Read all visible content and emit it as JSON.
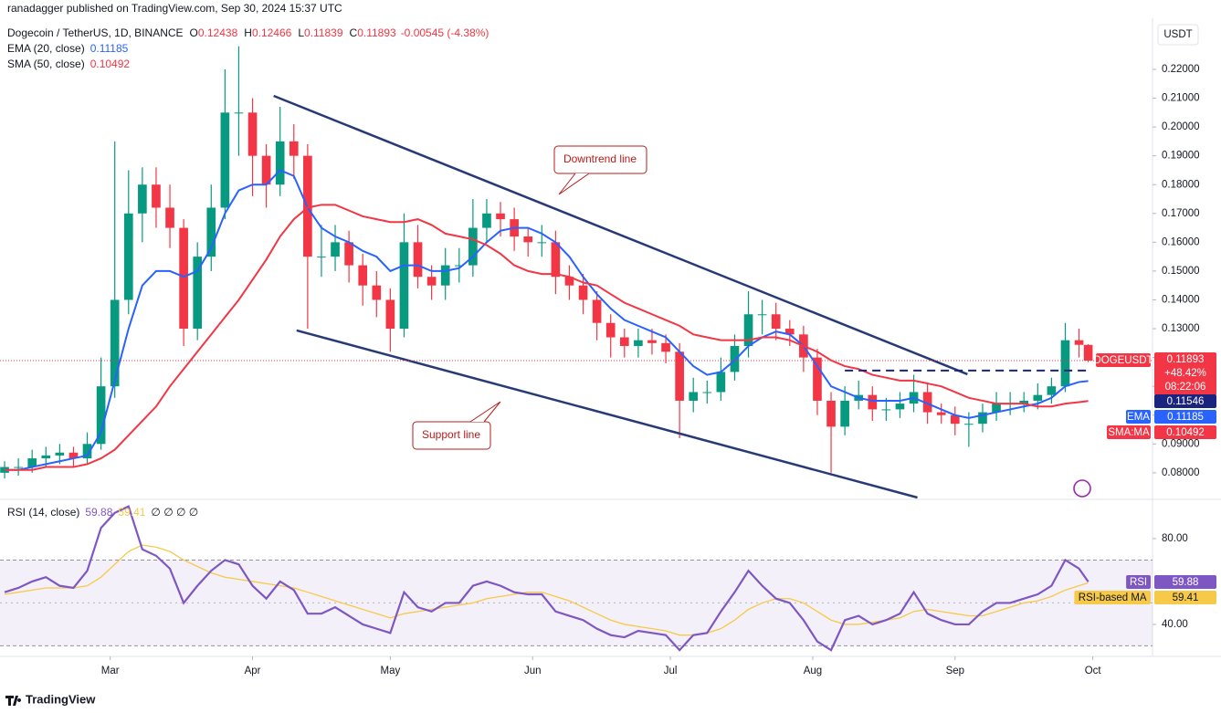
{
  "header": {
    "published": "ranadagger published on TradingView.com, Sep 30, 2024 15:37 UTC",
    "instrument": "Dogecoin / TetherUS, 1D, BINANCE",
    "ohlc_labels": [
      "O",
      "H",
      "L",
      "C"
    ],
    "change": "-0.00545 (-4.38%)",
    "currency": "USDT",
    "symbol_tag": "DOGEUSDT",
    "change_tag": "+48.42%",
    "countdown": "08:22:06"
  },
  "footer": {
    "brand": "TradingView"
  },
  "chart_data": [
    {
      "type": "candlestick",
      "colors": {
        "up": "#089981",
        "down": "#f23645"
      },
      "x": [
        0,
        3,
        6,
        9,
        12,
        15,
        18,
        21,
        24,
        27,
        30,
        33,
        36,
        39,
        42,
        45,
        48,
        51,
        54,
        57,
        60,
        63,
        66,
        69,
        72,
        75,
        78,
        81,
        84,
        87,
        90,
        93,
        96,
        99,
        102,
        105,
        108,
        111,
        114,
        117,
        120,
        123,
        126,
        129,
        132,
        135,
        138,
        141,
        144,
        147,
        150,
        153,
        156,
        159,
        162,
        165,
        168,
        171,
        174,
        177,
        180,
        183,
        186,
        189,
        192,
        195,
        198,
        201,
        204,
        207,
        210,
        213,
        216,
        219,
        222,
        225,
        228,
        231,
        234,
        236
      ],
      "xlim": [
        -1,
        250
      ],
      "xticks": [
        {
          "value": 23,
          "label": "Mar"
        },
        {
          "value": 54,
          "label": "Apr"
        },
        {
          "value": 84,
          "label": "May"
        },
        {
          "value": 115,
          "label": "Jun"
        },
        {
          "value": 145,
          "label": "Jul"
        },
        {
          "value": 176,
          "label": "Aug"
        },
        {
          "value": 207,
          "label": "Sep"
        },
        {
          "value": 237,
          "label": "Oct"
        }
      ],
      "ylim": [
        0.0714,
        0.2371
      ],
      "yticks": [
        {
          "value": 0.08,
          "label": "0.08000"
        },
        {
          "value": 0.09,
          "label": "0.09000"
        },
        {
          "value": 0.1,
          "label": "0.10000"
        },
        {
          "value": 0.11,
          "label": "0.11000"
        },
        {
          "value": 0.12,
          "label": "0.12000"
        },
        {
          "value": 0.13,
          "label": "0.13000"
        },
        {
          "value": 0.14,
          "label": "0.14000"
        },
        {
          "value": 0.15,
          "label": "0.15000"
        },
        {
          "value": 0.16,
          "label": "0.16000"
        },
        {
          "value": 0.17,
          "label": "0.17000"
        },
        {
          "value": 0.18,
          "label": "0.18000"
        },
        {
          "value": 0.19,
          "label": "0.19000"
        },
        {
          "value": 0.2,
          "label": "0.20000"
        },
        {
          "value": 0.21,
          "label": "0.21000"
        },
        {
          "value": 0.22,
          "label": "0.22000"
        }
      ],
      "candles": [
        [
          0.08,
          0.084,
          0.078,
          0.082
        ],
        [
          0.082,
          0.085,
          0.079,
          0.082
        ],
        [
          0.082,
          0.088,
          0.08,
          0.085
        ],
        [
          0.085,
          0.089,
          0.082,
          0.086
        ],
        [
          0.086,
          0.09,
          0.083,
          0.087
        ],
        [
          0.087,
          0.089,
          0.082,
          0.085
        ],
        [
          0.085,
          0.094,
          0.083,
          0.09
        ],
        [
          0.09,
          0.12,
          0.088,
          0.11
        ],
        [
          0.11,
          0.195,
          0.106,
          0.14
        ],
        [
          0.14,
          0.185,
          0.135,
          0.17
        ],
        [
          0.17,
          0.186,
          0.16,
          0.18
        ],
        [
          0.18,
          0.186,
          0.165,
          0.172
        ],
        [
          0.172,
          0.18,
          0.158,
          0.165
        ],
        [
          0.165,
          0.168,
          0.124,
          0.13
        ],
        [
          0.13,
          0.16,
          0.126,
          0.155
        ],
        [
          0.155,
          0.18,
          0.15,
          0.172
        ],
        [
          0.172,
          0.22,
          0.168,
          0.205
        ],
        [
          0.205,
          0.228,
          0.19,
          0.205
        ],
        [
          0.205,
          0.21,
          0.176,
          0.19
        ],
        [
          0.19,
          0.194,
          0.172,
          0.18
        ],
        [
          0.18,
          0.207,
          0.176,
          0.195
        ],
        [
          0.195,
          0.201,
          0.182,
          0.19
        ],
        [
          0.19,
          0.194,
          0.13,
          0.155
        ],
        [
          0.155,
          0.166,
          0.148,
          0.155
        ],
        [
          0.155,
          0.166,
          0.15,
          0.16
        ],
        [
          0.16,
          0.164,
          0.146,
          0.152
        ],
        [
          0.152,
          0.156,
          0.138,
          0.145
        ],
        [
          0.145,
          0.15,
          0.134,
          0.14
        ],
        [
          0.14,
          0.144,
          0.122,
          0.13
        ],
        [
          0.13,
          0.17,
          0.127,
          0.16
        ],
        [
          0.16,
          0.166,
          0.144,
          0.148
        ],
        [
          0.148,
          0.152,
          0.14,
          0.145
        ],
        [
          0.145,
          0.158,
          0.14,
          0.152
        ],
        [
          0.152,
          0.158,
          0.146,
          0.152
        ],
        [
          0.152,
          0.175,
          0.148,
          0.165
        ],
        [
          0.165,
          0.175,
          0.16,
          0.17
        ],
        [
          0.17,
          0.174,
          0.162,
          0.168
        ],
        [
          0.168,
          0.172,
          0.157,
          0.162
        ],
        [
          0.162,
          0.165,
          0.155,
          0.16
        ],
        [
          0.16,
          0.166,
          0.155,
          0.16
        ],
        [
          0.16,
          0.164,
          0.142,
          0.148
        ],
        [
          0.148,
          0.152,
          0.14,
          0.145
        ],
        [
          0.145,
          0.149,
          0.135,
          0.14
        ],
        [
          0.14,
          0.143,
          0.126,
          0.132
        ],
        [
          0.132,
          0.135,
          0.12,
          0.127
        ],
        [
          0.127,
          0.13,
          0.12,
          0.124
        ],
        [
          0.124,
          0.13,
          0.12,
          0.126
        ],
        [
          0.126,
          0.13,
          0.121,
          0.125
        ],
        [
          0.125,
          0.128,
          0.118,
          0.122
        ],
        [
          0.122,
          0.125,
          0.092,
          0.105
        ],
        [
          0.105,
          0.113,
          0.101,
          0.108
        ],
        [
          0.108,
          0.112,
          0.104,
          0.108
        ],
        [
          0.108,
          0.12,
          0.105,
          0.115
        ],
        [
          0.115,
          0.128,
          0.112,
          0.124
        ],
        [
          0.124,
          0.143,
          0.12,
          0.135
        ],
        [
          0.135,
          0.14,
          0.128,
          0.135
        ],
        [
          0.135,
          0.139,
          0.126,
          0.13
        ],
        [
          0.13,
          0.133,
          0.124,
          0.128
        ],
        [
          0.128,
          0.131,
          0.115,
          0.12
        ],
        [
          0.12,
          0.123,
          0.1,
          0.105
        ],
        [
          0.105,
          0.108,
          0.08,
          0.096
        ],
        [
          0.096,
          0.11,
          0.093,
          0.105
        ],
        [
          0.105,
          0.112,
          0.102,
          0.107
        ],
        [
          0.107,
          0.11,
          0.098,
          0.102
        ],
        [
          0.102,
          0.106,
          0.098,
          0.102
        ],
        [
          0.102,
          0.108,
          0.099,
          0.104
        ],
        [
          0.104,
          0.114,
          0.101,
          0.108
        ],
        [
          0.108,
          0.111,
          0.097,
          0.101
        ],
        [
          0.101,
          0.104,
          0.097,
          0.1
        ],
        [
          0.1,
          0.103,
          0.093,
          0.097
        ],
        [
          0.097,
          0.101,
          0.089,
          0.097
        ],
        [
          0.097,
          0.104,
          0.094,
          0.101
        ],
        [
          0.101,
          0.108,
          0.098,
          0.104
        ],
        [
          0.104,
          0.108,
          0.1,
          0.104
        ],
        [
          0.104,
          0.108,
          0.101,
          0.105
        ],
        [
          0.105,
          0.111,
          0.102,
          0.107
        ],
        [
          0.107,
          0.113,
          0.104,
          0.11
        ],
        [
          0.11,
          0.132,
          0.108,
          0.126
        ],
        [
          0.126,
          0.13,
          0.12,
          0.1244
        ],
        [
          0.12438,
          0.12466,
          0.11839,
          0.11893
        ]
      ],
      "series": [
        {
          "name": "EMA (20, close)",
          "tag": "EMA",
          "color": "#2962ff",
          "values": [
            0.081,
            0.081,
            0.082,
            0.083,
            0.084,
            0.085,
            0.086,
            0.094,
            0.112,
            0.13,
            0.145,
            0.15,
            0.15,
            0.148,
            0.15,
            0.158,
            0.17,
            0.178,
            0.18,
            0.18,
            0.185,
            0.183,
            0.172,
            0.165,
            0.162,
            0.16,
            0.157,
            0.155,
            0.15,
            0.152,
            0.152,
            0.15,
            0.15,
            0.151,
            0.155,
            0.16,
            0.164,
            0.165,
            0.165,
            0.163,
            0.16,
            0.155,
            0.148,
            0.142,
            0.137,
            0.133,
            0.131,
            0.129,
            0.127,
            0.122,
            0.117,
            0.114,
            0.115,
            0.119,
            0.124,
            0.127,
            0.129,
            0.128,
            0.124,
            0.117,
            0.11,
            0.108,
            0.106,
            0.105,
            0.105,
            0.105,
            0.106,
            0.104,
            0.102,
            0.1,
            0.099,
            0.1,
            0.101,
            0.102,
            0.103,
            0.104,
            0.106,
            0.11,
            0.1115,
            0.11185
          ]
        },
        {
          "name": "SMA (50, close)",
          "tag": "SMA:MA",
          "color": "#f23645",
          "values": [
            0.081,
            0.081,
            0.081,
            0.082,
            0.082,
            0.082,
            0.083,
            0.085,
            0.088,
            0.093,
            0.098,
            0.103,
            0.11,
            0.116,
            0.122,
            0.128,
            0.134,
            0.14,
            0.147,
            0.154,
            0.162,
            0.168,
            0.172,
            0.173,
            0.173,
            0.171,
            0.169,
            0.168,
            0.167,
            0.167,
            0.168,
            0.166,
            0.163,
            0.162,
            0.161,
            0.159,
            0.156,
            0.152,
            0.15,
            0.149,
            0.149,
            0.148,
            0.146,
            0.145,
            0.142,
            0.139,
            0.137,
            0.135,
            0.133,
            0.131,
            0.128,
            0.127,
            0.126,
            0.126,
            0.126,
            0.127,
            0.127,
            0.126,
            0.124,
            0.122,
            0.119,
            0.117,
            0.116,
            0.114,
            0.113,
            0.112,
            0.112,
            0.111,
            0.11,
            0.108,
            0.106,
            0.105,
            0.104,
            0.104,
            0.104,
            0.103,
            0.103,
            0.104,
            0.1045,
            0.10492
          ]
        }
      ],
      "level": {
        "value": 0.11546,
        "start": 183,
        "end": 236,
        "color": "#1a237e"
      },
      "trendlines": [
        {
          "name": "Downtrend line",
          "from": [
            58.6,
            0.2108
          ],
          "to": [
            209.7,
            0.1142
          ],
          "color": "#283a76"
        },
        {
          "name": "Support line",
          "from": [
            63.6,
            0.1294
          ],
          "to": [
            198.8,
            0.0714
          ],
          "color": "#283a76"
        }
      ]
    },
    {
      "type": "line",
      "title": "RSI (14, close)",
      "ylim": [
        25.5,
        97
      ],
      "yticks": [
        {
          "value": 80,
          "label": "80.00"
        },
        {
          "value": 40,
          "label": "40.00"
        }
      ],
      "bands": [
        70,
        50,
        30
      ],
      "extra": "∅ ∅ ∅ ∅",
      "series": [
        {
          "name": "RSI",
          "color": "#7e57c2",
          "values": [
            55,
            57,
            60,
            62,
            58,
            57,
            65,
            85,
            92,
            95,
            75,
            72,
            66,
            50,
            58,
            65,
            70,
            68,
            58,
            52,
            60,
            56,
            45,
            45,
            48,
            44,
            40,
            38,
            36,
            55,
            48,
            46,
            50,
            50,
            58,
            60,
            58,
            55,
            54,
            54,
            46,
            44,
            42,
            38,
            35,
            34,
            37,
            36,
            35,
            28,
            35,
            36,
            46,
            55,
            65,
            58,
            52,
            50,
            42,
            32,
            28,
            42,
            44,
            40,
            42,
            45,
            55,
            45,
            42,
            40,
            40,
            46,
            50,
            50,
            52,
            54,
            58,
            70,
            66,
            59.88
          ]
        },
        {
          "name": "RSI-based MA",
          "color": "#f7c948",
          "values": [
            54,
            55,
            56,
            57,
            57,
            57,
            58,
            62,
            68,
            74,
            77,
            76,
            74,
            70,
            67,
            64,
            62,
            61,
            60,
            59,
            58,
            57,
            55,
            53,
            51,
            49,
            47,
            45,
            43,
            45,
            46,
            47,
            48,
            49,
            50,
            52,
            53,
            54,
            55,
            55,
            53,
            51,
            48,
            45,
            42,
            40,
            39,
            38,
            37,
            35,
            35,
            36,
            38,
            42,
            47,
            50,
            52,
            52,
            50,
            46,
            42,
            40,
            40,
            41,
            42,
            43,
            46,
            47,
            46,
            45,
            44,
            44,
            46,
            48,
            50,
            51,
            53,
            56,
            58,
            59.41
          ]
        }
      ]
    }
  ]
}
